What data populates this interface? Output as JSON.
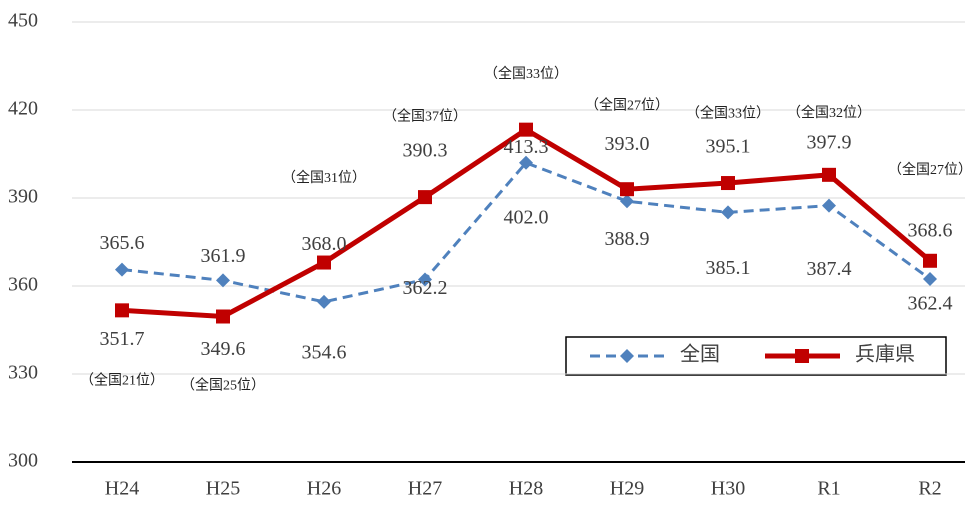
{
  "chart_data": {
    "type": "line",
    "categories": [
      "H24",
      "H25",
      "H26",
      "H27",
      "H28",
      "H29",
      "H30",
      "R1",
      "R2"
    ],
    "series": [
      {
        "name": "全国",
        "color": "#4f81bd",
        "dashed": true,
        "marker": "diamond",
        "values": [
          365.6,
          361.9,
          354.6,
          362.2,
          402.0,
          388.9,
          385.1,
          387.4,
          362.4
        ],
        "value_labels": [
          "365.6",
          "361.9",
          "354.6",
          "362.2",
          "402.0",
          "388.9",
          "385.1",
          "387.4",
          "362.4"
        ]
      },
      {
        "name": "兵庫県",
        "color": "#c00000",
        "dashed": false,
        "marker": "square",
        "values": [
          351.7,
          349.6,
          368.0,
          390.3,
          413.3,
          393.0,
          395.1,
          397.9,
          368.6
        ],
        "value_labels": [
          "351.7",
          "349.6",
          "368.0",
          "390.3",
          "413.3",
          "393.0",
          "395.1",
          "397.9",
          "368.6"
        ],
        "annotations": [
          "（全国21位）",
          "（全国25位）",
          "（全国31位）",
          "（全国37位）",
          "（全国33位）",
          "（全国27位）",
          "（全国33位）",
          "（全国32位）",
          "（全国27位）"
        ]
      }
    ],
    "ylim": [
      300,
      450
    ],
    "yticks": [
      300,
      330,
      360,
      390,
      420,
      450
    ],
    "grid": true
  }
}
